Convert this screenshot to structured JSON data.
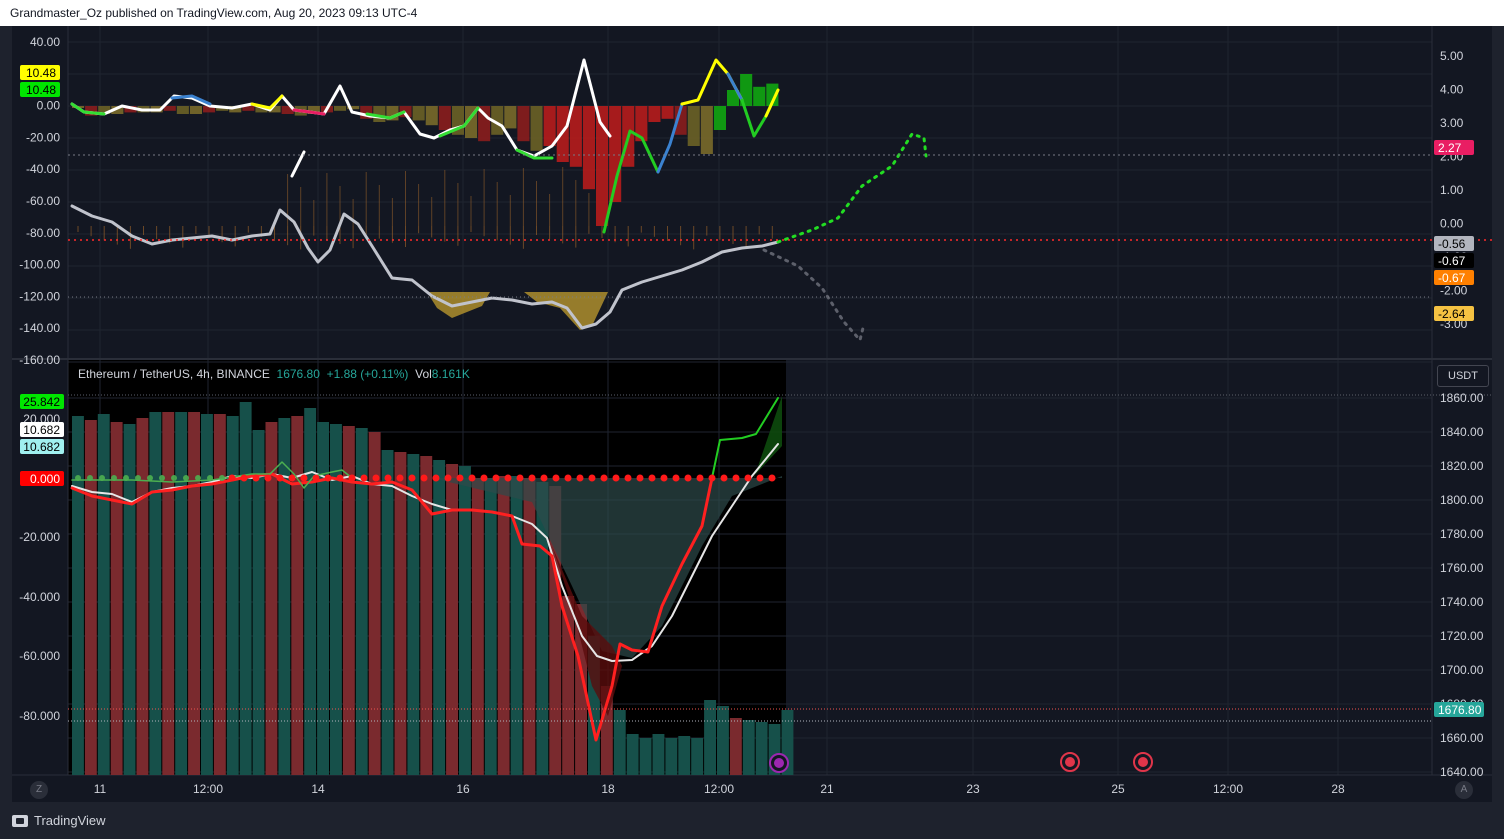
{
  "header": {
    "publish_line": "Grandmaster_Oz published on TradingView.com, Aug 20, 2023 09:13 UTC-4"
  },
  "legend": {
    "symbol": "Ethereum / TetherUS, 4h, BINANCE",
    "price": "1676.80",
    "change": "+1.88 (+0.11%)",
    "vol_label": "Vol",
    "vol_value": "8.161K"
  },
  "upper_pane": {
    "left_ticks": [
      "40.00",
      "20.00",
      "0.00",
      "-20.00",
      "-40.00",
      "-60.00",
      "-80.00",
      "-100.00",
      "-120.00",
      "-140.00",
      "-160.00"
    ],
    "left_badges": [
      {
        "text": "10.48",
        "bg": "#ffff00",
        "fg": "#000000"
      },
      {
        "text": "10.48",
        "bg": "#00e600",
        "fg": "#000000"
      }
    ],
    "right_ticks": [
      "5.00",
      "4.00",
      "3.00",
      "2.00",
      "1.00",
      "0.00",
      "-1.00",
      "-2.00",
      "-3.00"
    ],
    "right_badges": [
      {
        "text": "2.27",
        "bg": "#e91e63",
        "fg": "#ffffff"
      },
      {
        "text": "-0.56",
        "bg": "#b2b5be",
        "fg": "#000000"
      },
      {
        "text": "-0.67",
        "bg": "#000000",
        "fg": "#ffffff"
      },
      {
        "text": "-0.67",
        "bg": "#ff8000",
        "fg": "#ffffff"
      },
      {
        "text": "-2.64",
        "bg": "#f5c242",
        "fg": "#000000"
      }
    ]
  },
  "lower_pane": {
    "left_ticks": [
      "20.000",
      "0.000",
      "-20.000",
      "-40.000",
      "-60.000",
      "-80.000"
    ],
    "left_badges": [
      {
        "text": "25.842",
        "bg": "#00e600",
        "fg": "#000000"
      },
      {
        "text": "10.682",
        "bg": "#ffffff",
        "fg": "#000000"
      },
      {
        "text": "10.682",
        "bg": "#a0f0f0",
        "fg": "#000000"
      },
      {
        "text": "0.000",
        "bg": "#ff0000",
        "fg": "#ffffff"
      }
    ],
    "currency": "USDT",
    "right_ticks": [
      "1860.00",
      "1840.00",
      "1820.00",
      "1800.00",
      "1780.00",
      "1760.00",
      "1740.00",
      "1720.00",
      "1700.00",
      "1680.00",
      "1660.00",
      "1640.00"
    ],
    "price_badge": {
      "text": "1676.80",
      "bg": "#26a69a",
      "fg": "#ffffff"
    }
  },
  "time_axis": [
    "11",
    "12:00",
    "14",
    "16",
    "18",
    "12:00",
    "21",
    "23",
    "25",
    "12:00",
    "28"
  ],
  "buttons": {
    "left": "Z",
    "right": "A"
  },
  "footer": {
    "logo_text": "TradingView"
  },
  "colors": {
    "up": "#26a69a",
    "down": "#ef5350",
    "bg": "#131722"
  }
}
